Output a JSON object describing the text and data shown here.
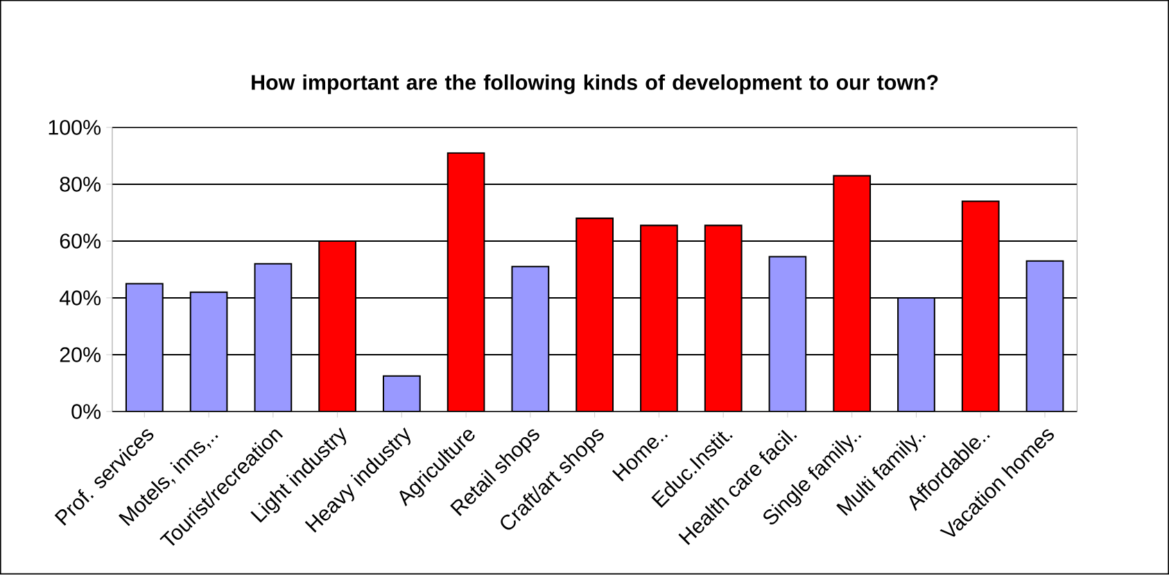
{
  "chart_data": {
    "type": "bar",
    "title": "How important are the following kinds of development to our town?",
    "categories": [
      "Prof. services",
      "Motels, inns,..",
      "Tourist/recreation",
      "Light industry",
      "Heavy industry",
      "Agriculture",
      "Retail shops",
      "Craft/art shops",
      "Home..",
      "Educ.Instit.",
      "Health care facil.",
      "Single family..",
      "Multi family..",
      "Affordable..",
      "Vacation homes"
    ],
    "values": [
      45,
      42,
      52,
      60,
      12.5,
      91,
      51,
      68,
      65.5,
      65.5,
      54.5,
      83,
      40,
      74,
      53
    ],
    "colors": [
      "#9999ff",
      "#9999ff",
      "#9999ff",
      "#ff0000",
      "#9999ff",
      "#ff0000",
      "#9999ff",
      "#ff0000",
      "#ff0000",
      "#ff0000",
      "#9999ff",
      "#ff0000",
      "#9999ff",
      "#ff0000",
      "#9999ff"
    ],
    "ylim": [
      0,
      100
    ],
    "yticks": [
      {
        "value": 0,
        "label": "0%"
      },
      {
        "value": 20,
        "label": "20%"
      },
      {
        "value": 40,
        "label": "40%"
      },
      {
        "value": 60,
        "label": "60%"
      },
      {
        "value": 80,
        "label": "80%"
      },
      {
        "value": 100,
        "label": "100%"
      }
    ],
    "grid": "y"
  }
}
